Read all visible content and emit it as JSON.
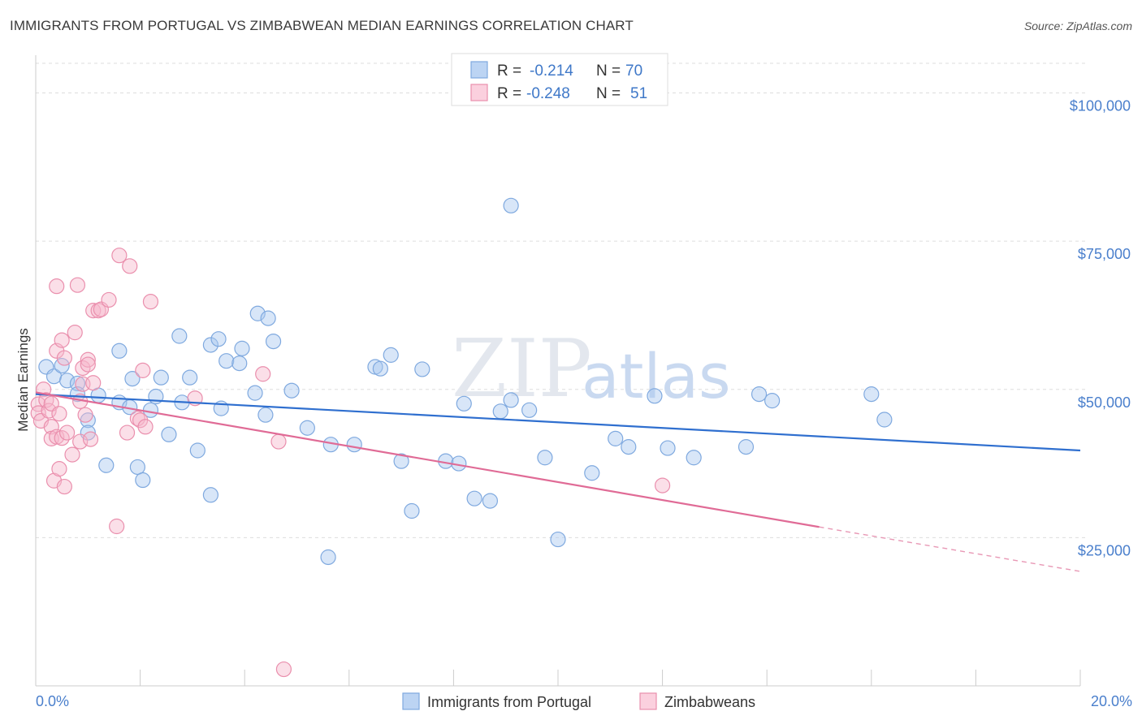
{
  "header": {
    "title": "IMMIGRANTS FROM PORTUGAL VS ZIMBABWEAN MEDIAN EARNINGS CORRELATION CHART",
    "source": "Source: ZipAtlas.com"
  },
  "watermark": {
    "zip": "ZIP",
    "atlas": "atlas"
  },
  "legend": {
    "rows": [
      {
        "r_label": "R =",
        "r_value": "-0.214",
        "n_label": "N =",
        "n_value": "70",
        "color": "#a9c8f0"
      },
      {
        "r_label": "R =",
        "r_value": "-0.248",
        "n_label": "N =",
        "n_value": "51",
        "color": "#f7b8cd"
      }
    ]
  },
  "chart_data": {
    "type": "scatter",
    "ylabel": "Median Earnings",
    "xlim": [
      0,
      20
    ],
    "ylim": [
      0,
      105000
    ],
    "x_ticks": [
      "0.0%",
      "20.0%"
    ],
    "y_ticks": [
      {
        "value": 100000,
        "label": "$100,000"
      },
      {
        "value": 75000,
        "label": "$75,000"
      },
      {
        "value": 50000,
        "label": "$50,000"
      },
      {
        "value": 25000,
        "label": "$25,000"
      }
    ],
    "grid": true,
    "series": [
      {
        "name": "Immigrants from Portugal",
        "color": "#a9c8f0",
        "stroke": "#7fa9df",
        "trend": {
          "x": [
            0,
            20
          ],
          "y": [
            49200,
            39700
          ],
          "color": "#2f6fcf"
        },
        "points": [
          [
            0.2,
            53800
          ],
          [
            0.35,
            52200
          ],
          [
            0.5,
            54000
          ],
          [
            0.6,
            51500
          ],
          [
            0.8,
            51000
          ],
          [
            0.8,
            49200
          ],
          [
            1.0,
            44800
          ],
          [
            1.0,
            42700
          ],
          [
            1.2,
            49000
          ],
          [
            1.35,
            37200
          ],
          [
            1.6,
            47800
          ],
          [
            1.6,
            56500
          ],
          [
            1.8,
            47000
          ],
          [
            1.85,
            51800
          ],
          [
            1.95,
            36900
          ],
          [
            2.05,
            34700
          ],
          [
            2.2,
            46500
          ],
          [
            2.3,
            48800
          ],
          [
            2.4,
            52000
          ],
          [
            2.55,
            42400
          ],
          [
            2.8,
            47800
          ],
          [
            2.75,
            59000
          ],
          [
            2.95,
            52000
          ],
          [
            3.1,
            39700
          ],
          [
            3.35,
            32200
          ],
          [
            3.35,
            57500
          ],
          [
            3.5,
            58500
          ],
          [
            3.55,
            46800
          ],
          [
            3.65,
            54800
          ],
          [
            3.9,
            54400
          ],
          [
            3.95,
            56900
          ],
          [
            4.2,
            49400
          ],
          [
            4.25,
            62800
          ],
          [
            4.45,
            62000
          ],
          [
            4.4,
            45700
          ],
          [
            4.55,
            58100
          ],
          [
            4.9,
            49800
          ],
          [
            5.2,
            43500
          ],
          [
            5.6,
            21700
          ],
          [
            5.65,
            40700
          ],
          [
            6.1,
            40700
          ],
          [
            6.5,
            53800
          ],
          [
            6.6,
            53500
          ],
          [
            6.8,
            55800
          ],
          [
            7.0,
            37900
          ],
          [
            7.2,
            29500
          ],
          [
            7.4,
            53400
          ],
          [
            7.85,
            37900
          ],
          [
            8.1,
            37500
          ],
          [
            8.2,
            47600
          ],
          [
            8.4,
            31600
          ],
          [
            8.7,
            31200
          ],
          [
            8.9,
            46300
          ],
          [
            9.1,
            48200
          ],
          [
            9.1,
            81000
          ],
          [
            9.45,
            46500
          ],
          [
            9.75,
            38500
          ],
          [
            10.0,
            24700
          ],
          [
            10.65,
            35900
          ],
          [
            11.1,
            41700
          ],
          [
            11.35,
            40300
          ],
          [
            11.85,
            48900
          ],
          [
            12.1,
            40100
          ],
          [
            12.6,
            38500
          ],
          [
            13.6,
            40300
          ],
          [
            13.85,
            49200
          ],
          [
            14.1,
            48100
          ],
          [
            16.0,
            49200
          ],
          [
            16.25,
            44900
          ]
        ]
      },
      {
        "name": "Zimbabweans",
        "color": "#f7b8cd",
        "stroke": "#ea8fad",
        "trend": {
          "x": [
            0,
            15.0
          ],
          "y": [
            49500,
            26800
          ],
          "color": "#e06b96"
        },
        "trend_dashed": {
          "x": [
            15.0,
            20
          ],
          "y": [
            26800,
            19300
          ],
          "color": "#e898b5"
        },
        "points": [
          [
            0.05,
            47500
          ],
          [
            0.05,
            46000
          ],
          [
            0.1,
            44700
          ],
          [
            0.15,
            50000
          ],
          [
            0.2,
            48200
          ],
          [
            0.25,
            46400
          ],
          [
            0.3,
            43700
          ],
          [
            0.3,
            41700
          ],
          [
            0.3,
            47600
          ],
          [
            0.35,
            34600
          ],
          [
            0.4,
            67400
          ],
          [
            0.4,
            42000
          ],
          [
            0.4,
            56500
          ],
          [
            0.45,
            45900
          ],
          [
            0.45,
            36600
          ],
          [
            0.5,
            41800
          ],
          [
            0.5,
            58300
          ],
          [
            0.55,
            55300
          ],
          [
            0.55,
            33600
          ],
          [
            0.6,
            42700
          ],
          [
            0.7,
            39000
          ],
          [
            0.75,
            59600
          ],
          [
            0.8,
            67600
          ],
          [
            0.85,
            41200
          ],
          [
            0.85,
            48000
          ],
          [
            0.9,
            50900
          ],
          [
            0.9,
            53600
          ],
          [
            0.95,
            45700
          ],
          [
            1.0,
            55000
          ],
          [
            1.0,
            54200
          ],
          [
            1.05,
            41600
          ],
          [
            1.1,
            51100
          ],
          [
            1.1,
            63300
          ],
          [
            1.2,
            63300
          ],
          [
            1.25,
            63500
          ],
          [
            1.4,
            65100
          ],
          [
            1.55,
            26900
          ],
          [
            1.6,
            72600
          ],
          [
            1.75,
            42700
          ],
          [
            1.8,
            70800
          ],
          [
            1.95,
            45100
          ],
          [
            2.0,
            44800
          ],
          [
            2.05,
            53200
          ],
          [
            2.1,
            43700
          ],
          [
            2.2,
            64800
          ],
          [
            3.05,
            48500
          ],
          [
            4.35,
            52600
          ],
          [
            4.65,
            41200
          ],
          [
            4.75,
            2800
          ],
          [
            12.0,
            33800
          ]
        ]
      }
    ]
  },
  "bottom_legend": {
    "items": [
      {
        "label": "Immigrants from Portugal",
        "color": "#a9c8f0"
      },
      {
        "label": "Zimbabweans",
        "color": "#f7b8cd"
      }
    ]
  }
}
